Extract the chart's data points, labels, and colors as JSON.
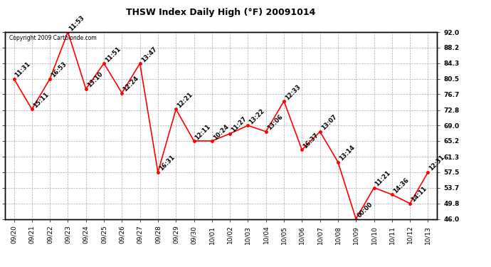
{
  "title": "THSW Index Daily High (°F) 20091014",
  "copyright": "Copyright 2009 Cartblonde.com",
  "dates": [
    "09/20",
    "09/21",
    "09/22",
    "09/23",
    "09/24",
    "09/25",
    "09/26",
    "09/27",
    "09/28",
    "09/29",
    "09/30",
    "10/01",
    "10/02",
    "10/03",
    "10/04",
    "10/05",
    "10/06",
    "10/07",
    "10/08",
    "10/09",
    "10/10",
    "10/11",
    "10/12",
    "10/13"
  ],
  "values": [
    80.5,
    73.0,
    80.5,
    92.0,
    78.0,
    84.3,
    77.0,
    84.3,
    57.5,
    73.0,
    65.2,
    65.2,
    67.0,
    69.0,
    67.5,
    75.0,
    63.0,
    67.5,
    60.0,
    46.0,
    53.7,
    52.0,
    49.8,
    57.5
  ],
  "times": [
    "11:31",
    "15:11",
    "16:53",
    "11:53",
    "13:10",
    "11:51",
    "12:24",
    "13:47",
    "16:31",
    "12:21",
    "12:11",
    "10:24",
    "11:27",
    "13:22",
    "13:06",
    "12:33",
    "16:37",
    "13:07",
    "13:14",
    "00:00",
    "11:21",
    "14:36",
    "14:11",
    "12:31"
  ],
  "ylim": [
    46.0,
    92.0
  ],
  "yticks": [
    46.0,
    49.8,
    53.7,
    57.5,
    61.3,
    65.2,
    69.0,
    72.8,
    76.7,
    80.5,
    84.3,
    88.2,
    92.0
  ],
  "line_color": "red",
  "marker_color": "red",
  "bg_color": "white",
  "grid_color": "#aaaaaa",
  "title_fontsize": 9,
  "label_fontsize": 6,
  "tick_fontsize": 6.5,
  "copyright_fontsize": 5.5
}
